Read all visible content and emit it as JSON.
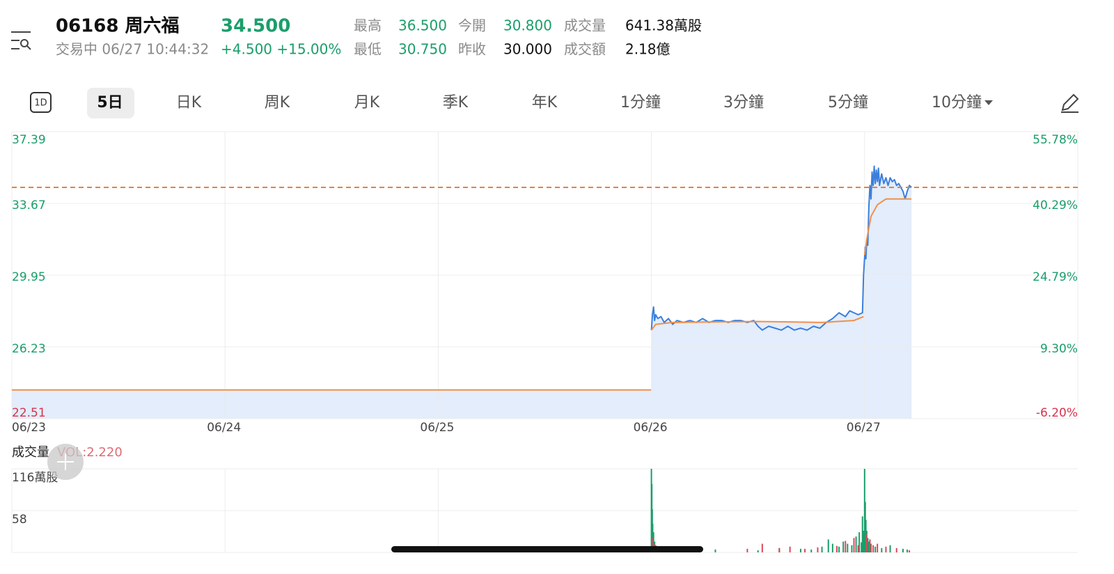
{
  "header": {
    "code_name": "06168 周六福",
    "price": "34.500",
    "status": "交易中 06/27 10:44:32",
    "change": "+4.500 +15.00%",
    "stats": [
      [
        "最高",
        "36.500"
      ],
      [
        "今開",
        "30.800"
      ],
      [
        "成交量",
        "641.38萬股"
      ],
      [
        "最低",
        "30.750"
      ],
      [
        "昨收",
        "30.000"
      ],
      [
        "成交額",
        "2.18億"
      ]
    ]
  },
  "tab_icon": "1D",
  "tabs": [
    "5日",
    "日K",
    "周K",
    "月K",
    "季K",
    "年K",
    "1分鐘",
    "3分鐘",
    "5分鐘",
    "10分鐘"
  ],
  "chart_data": [
    {
      "type": "line",
      "xlim": [
        0,
        5
      ],
      "xticks": [
        {
          "value": 0,
          "label": "06/23"
        },
        {
          "value": 1,
          "label": "06/24"
        },
        {
          "value": 2,
          "label": "06/25"
        },
        {
          "value": 3,
          "label": "06/26"
        },
        {
          "value": 4,
          "label": "06/27"
        }
      ],
      "ylim": [
        22.51,
        37.39
      ],
      "yticks": [
        22.51,
        26.23,
        29.95,
        33.67,
        37.39
      ],
      "y2lim": [
        -6.2,
        55.78
      ],
      "y2ticks": [
        {
          "value": -6.2,
          "label": "-6.20%"
        },
        {
          "value": 9.3,
          "label": "9.30%"
        },
        {
          "value": 24.79,
          "label": "24.79%"
        },
        {
          "value": 40.29,
          "label": "40.29%"
        },
        {
          "value": 55.78,
          "label": "55.78%"
        }
      ],
      "reference_line": 34.5,
      "fill": "#e3edfb",
      "grid": true,
      "series": [
        {
          "color": "#3a7fdc",
          "x": [
            3.0,
            3.005,
            3.01,
            3.015,
            3.02,
            3.03,
            3.045,
            3.06,
            3.08,
            3.1,
            3.12,
            3.15,
            3.18,
            3.21,
            3.24,
            3.27,
            3.3,
            3.33,
            3.36,
            3.39,
            3.42,
            3.45,
            3.48,
            3.5,
            3.52,
            3.55,
            3.58,
            3.61,
            3.64,
            3.67,
            3.7,
            3.73,
            3.76,
            3.79,
            3.82,
            3.85,
            3.88,
            3.91,
            3.93,
            3.95,
            3.97,
            3.99,
            3.995,
            4.003,
            4.006,
            4.01,
            4.015,
            4.02,
            4.025,
            4.03,
            4.035,
            4.04,
            4.045,
            4.05,
            4.055,
            4.06,
            4.065,
            4.07,
            4.08,
            4.09,
            4.1,
            4.11,
            4.12,
            4.13,
            4.14,
            4.15,
            4.16,
            4.18,
            4.19,
            4.2,
            4.21,
            4.22
          ],
          "values": [
            27.1,
            27.9,
            28.3,
            27.6,
            27.9,
            27.7,
            27.8,
            27.5,
            27.7,
            27.4,
            27.6,
            27.5,
            27.6,
            27.5,
            27.7,
            27.5,
            27.6,
            27.6,
            27.5,
            27.6,
            27.6,
            27.5,
            27.6,
            27.3,
            27.1,
            27.3,
            27.2,
            27.1,
            27.3,
            27.1,
            27.2,
            27.1,
            27.3,
            27.2,
            27.5,
            27.7,
            28.0,
            27.8,
            28.1,
            28.0,
            27.9,
            28.0,
            29.95,
            31.4,
            30.8,
            31.8,
            31.5,
            33.5,
            34.6,
            33.9,
            35.3,
            34.6,
            35.6,
            34.7,
            35.4,
            34.8,
            35.5,
            34.6,
            35.2,
            34.7,
            35.0,
            34.6,
            35.0,
            34.8,
            34.9,
            34.6,
            34.7,
            34.3,
            33.9,
            34.3,
            34.6,
            34.5
          ]
        },
        {
          "color": "#f0904a",
          "x": [
            0,
            2.999,
            null,
            3.0,
            3.02,
            3.1,
            3.5,
            3.8,
            3.95,
            3.995,
            null,
            4.0,
            4.01,
            4.03,
            4.06,
            4.1,
            4.22
          ],
          "values": [
            24.0,
            24.0,
            null,
            27.1,
            27.4,
            27.5,
            27.55,
            27.5,
            27.6,
            27.8,
            null,
            31.0,
            31.8,
            33.0,
            33.6,
            33.9,
            33.9
          ]
        }
      ]
    },
    {
      "type": "bar",
      "title": "成交量",
      "subtitle": "VOL:2.220",
      "xlim": [
        0,
        5
      ],
      "ylim": [
        0,
        116
      ],
      "yticks": [
        {
          "value": 116,
          "label": "116萬股"
        },
        58
      ],
      "series": [
        {
          "color": "#1a9e6a",
          "x": [
            3.0,
            3.002,
            3.004,
            3.006,
            3.01,
            3.015,
            3.02,
            3.03,
            3.05,
            3.08,
            3.12,
            3.3,
            3.5,
            3.6,
            3.7,
            3.75,
            3.8,
            3.83,
            3.85,
            3.88,
            3.9,
            3.92,
            3.94,
            3.96,
            3.975,
            3.985,
            3.99,
            3.995,
            4.0,
            4.003,
            4.006,
            4.01,
            4.015,
            4.02,
            4.03,
            4.05,
            4.08,
            4.12,
            4.18,
            4.2
          ],
          "values": [
            116,
            95,
            60,
            40,
            28,
            15,
            10,
            8,
            5,
            4,
            3,
            4,
            3,
            6,
            5,
            4,
            8,
            18,
            12,
            8,
            15,
            12,
            10,
            22,
            28,
            14,
            50,
            30,
            116,
            70,
            45,
            30,
            20,
            15,
            12,
            8,
            6,
            10,
            5,
            4
          ]
        },
        {
          "color": "#e0455a",
          "x": [
            3.007,
            3.012,
            3.025,
            3.04,
            3.07,
            3.2,
            3.45,
            3.52,
            3.6,
            3.65,
            3.72,
            3.78,
            3.87,
            3.91,
            3.95,
            3.97,
            4.008,
            4.025,
            4.04,
            4.06,
            4.1,
            4.15,
            4.21
          ],
          "values": [
            20,
            12,
            8,
            6,
            4,
            3,
            5,
            12,
            6,
            8,
            5,
            7,
            9,
            16,
            20,
            10,
            25,
            18,
            10,
            12,
            8,
            6,
            3
          ]
        }
      ]
    }
  ]
}
